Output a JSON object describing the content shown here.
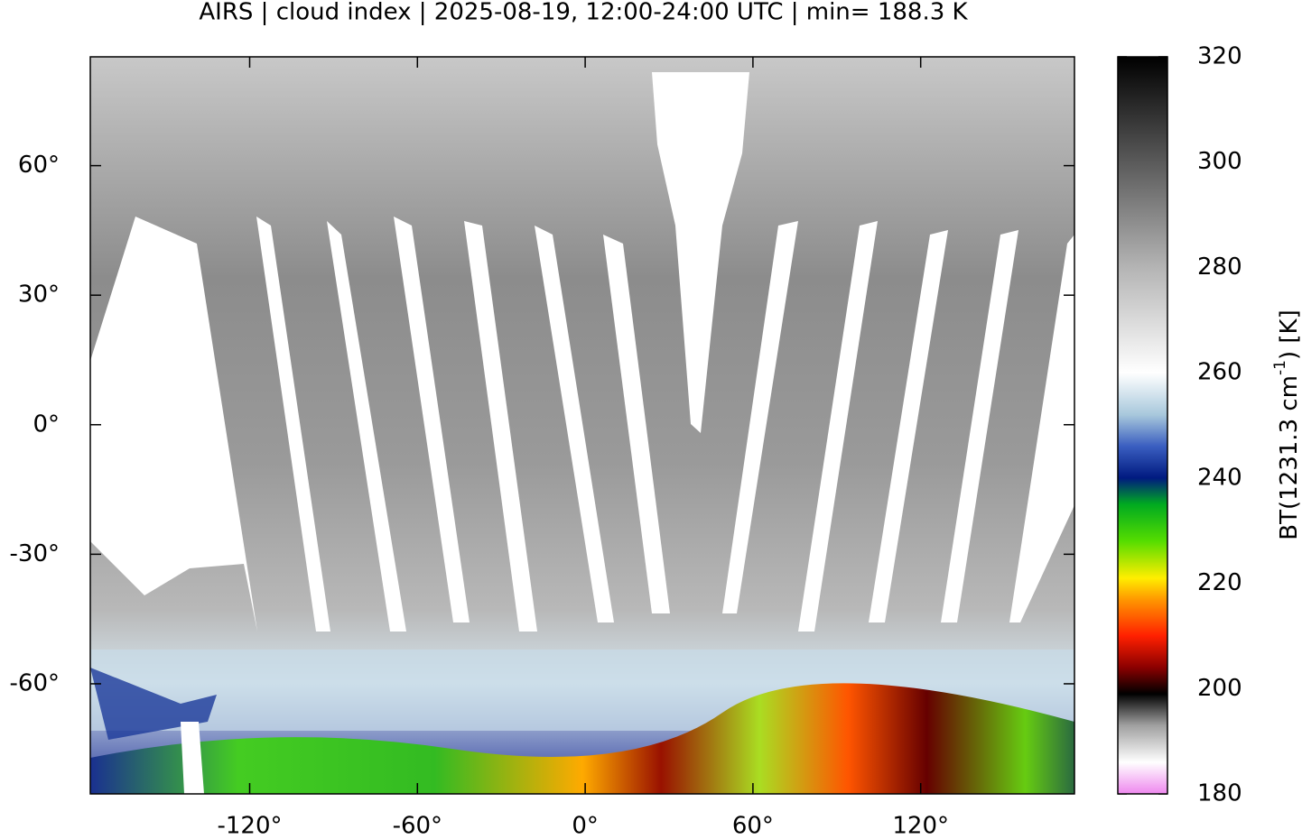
{
  "title": "AIRS | cloud index | 2025-08-19, 12:00-24:00 UTC | min= 188.3 K",
  "map": {
    "xlim": [
      -177,
      175
    ],
    "ylim": [
      -85.5,
      85.2
    ],
    "xticks": [
      {
        "value": -120,
        "label": "-120°"
      },
      {
        "value": -60,
        "label": "-60°"
      },
      {
        "value": 0,
        "label": "0°"
      },
      {
        "value": 60,
        "label": "60°"
      },
      {
        "value": 120,
        "label": "120°"
      }
    ],
    "yticks": [
      {
        "value": 60,
        "label": "60°"
      },
      {
        "value": 30,
        "label": "30°"
      },
      {
        "value": 0,
        "label": "0°"
      },
      {
        "value": -30,
        "label": "-30°"
      },
      {
        "value": -60,
        "label": "-60°"
      }
    ]
  },
  "colorbar": {
    "lim": [
      180,
      320
    ],
    "ticks": [
      320,
      300,
      280,
      260,
      240,
      220,
      200,
      180
    ],
    "label": [
      "BT(1231.3 cm",
      "-1",
      ") [K]"
    ],
    "colormap": [
      {
        "value": 180,
        "color": "#ee88ee"
      },
      {
        "value": 186,
        "color": "#ffffff"
      },
      {
        "value": 193,
        "color": "#a0a0a0"
      },
      {
        "value": 199,
        "color": "#000000"
      },
      {
        "value": 204,
        "color": "#8b0000"
      },
      {
        "value": 210,
        "color": "#ff2000"
      },
      {
        "value": 217,
        "color": "#ff9900"
      },
      {
        "value": 221,
        "color": "#ffee00"
      },
      {
        "value": 228,
        "color": "#55dd00"
      },
      {
        "value": 235,
        "color": "#00aa20"
      },
      {
        "value": 240,
        "color": "#001a80"
      },
      {
        "value": 246,
        "color": "#3a5ec0"
      },
      {
        "value": 252,
        "color": "#a8c8dc"
      },
      {
        "value": 260,
        "color": "#ffffff"
      },
      {
        "value": 280,
        "color": "#b4b4b4"
      },
      {
        "value": 300,
        "color": "#5a5a5a"
      },
      {
        "value": 320,
        "color": "#000000"
      }
    ]
  }
}
